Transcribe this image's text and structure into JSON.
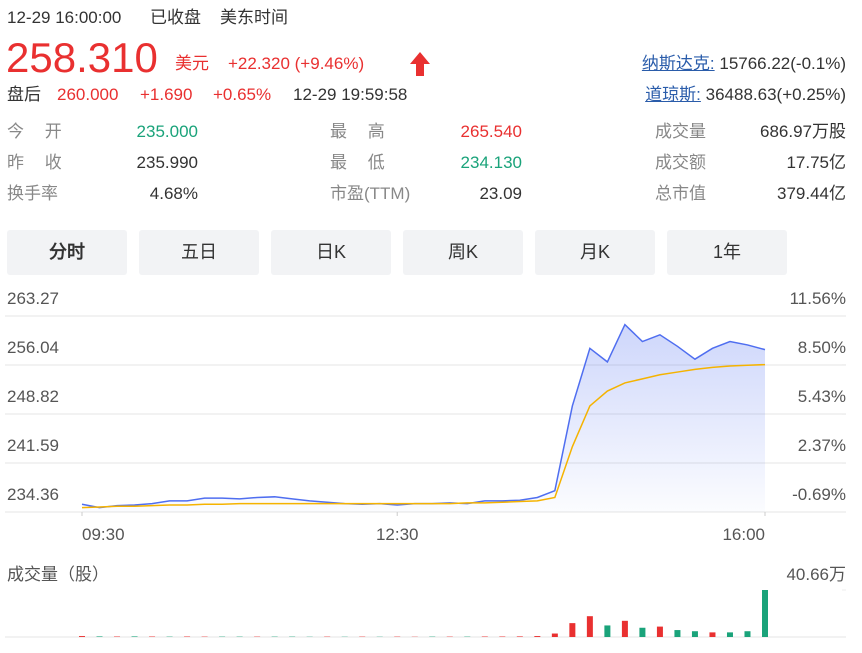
{
  "header": {
    "datetime": "12-29 16:00:00",
    "status": "已收盘",
    "timezone": "美东时间",
    "price": "258.310",
    "currency": "美元",
    "change": "+22.320 (+9.46%)",
    "after_label": "盘后",
    "after_price": "260.000",
    "after_change": "+1.690",
    "after_pct": "+0.65%",
    "after_time": "12-29 19:59:58",
    "indices": [
      {
        "label": "纳斯达克:",
        "value": "15766.22(-0.1%)"
      },
      {
        "label": "道琼斯:",
        "value": "36488.63(+0.25%)"
      }
    ]
  },
  "stats": [
    [
      {
        "label": "今 开",
        "value": "235.000",
        "color": "#1aa37a"
      },
      {
        "label": "最 高",
        "value": "265.540",
        "color": "#e93030"
      },
      {
        "label": "成交量",
        "value": "686.97万股",
        "color": "#333"
      }
    ],
    [
      {
        "label": "昨 收",
        "value": "235.990",
        "color": "#333"
      },
      {
        "label": "最 低",
        "value": "234.130",
        "color": "#1aa37a"
      },
      {
        "label": "成交额",
        "value": "17.75亿",
        "color": "#333"
      }
    ],
    [
      {
        "label": "换手率",
        "value": "4.68%",
        "color": "#333"
      },
      {
        "label": "市盈(TTM)",
        "value": "23.09",
        "color": "#333"
      },
      {
        "label": "总市值",
        "value": "379.44亿",
        "color": "#333"
      }
    ]
  ],
  "tabs": [
    "分时",
    "五日",
    "日K",
    "周K",
    "月K",
    "1年"
  ],
  "chart_data": [
    {
      "type": "line",
      "x": [
        "09:30",
        "09:40",
        "09:50",
        "10:00",
        "10:10",
        "10:20",
        "10:30",
        "10:40",
        "10:50",
        "11:00",
        "11:10",
        "11:20",
        "11:30",
        "11:40",
        "11:50",
        "12:00",
        "12:10",
        "12:20",
        "12:30",
        "12:40",
        "12:50",
        "13:00",
        "13:10",
        "13:20",
        "13:30",
        "13:40",
        "13:50",
        "14:00",
        "14:10",
        "14:20",
        "14:30",
        "14:40",
        "14:50",
        "15:00",
        "15:10",
        "15:20",
        "15:30",
        "15:40",
        "15:50",
        "16:00"
      ],
      "xticks": [
        "09:30",
        "12:30",
        "16:00"
      ],
      "series": [
        {
          "color": "#4f6ef0",
          "values": [
            235.5,
            235.0,
            235.3,
            235.4,
            235.6,
            236.0,
            236.0,
            236.4,
            236.4,
            236.3,
            236.5,
            236.6,
            236.3,
            236.0,
            235.8,
            235.6,
            235.5,
            235.6,
            235.4,
            235.6,
            235.6,
            235.7,
            235.6,
            236.0,
            236.0,
            236.1,
            236.5,
            237.5,
            250.0,
            258.5,
            256.5,
            262.0,
            259.5,
            260.5,
            258.8,
            256.9,
            258.5,
            259.5,
            259.0,
            258.31
          ]
        },
        {
          "color": "#f5b300",
          "values": [
            235.0,
            235.1,
            235.2,
            235.2,
            235.3,
            235.4,
            235.4,
            235.5,
            235.5,
            235.6,
            235.6,
            235.6,
            235.6,
            235.6,
            235.6,
            235.6,
            235.6,
            235.6,
            235.6,
            235.6,
            235.6,
            235.6,
            235.7,
            235.7,
            235.8,
            235.9,
            236.0,
            236.5,
            244.0,
            250.0,
            252.2,
            253.4,
            254.0,
            254.6,
            255.0,
            255.4,
            255.7,
            255.9,
            256.0,
            256.1
          ]
        }
      ],
      "ylim": [
        234.36,
        263.27
      ],
      "yticks": [
        234.36,
        241.59,
        248.82,
        256.04,
        263.27
      ],
      "y2lim": [
        -0.69,
        11.56
      ],
      "y2ticks": [
        {
          "value": -0.69,
          "label": "-0.69%"
        },
        {
          "value": 2.37,
          "label": "2.37%"
        },
        {
          "value": 5.43,
          "label": "5.43%"
        },
        {
          "value": 8.5,
          "label": "8.50%"
        },
        {
          "value": 11.56,
          "label": "11.56%"
        }
      ],
      "grid": true
    },
    {
      "type": "bar",
      "title": "成交量（股）",
      "values": [
        0.8,
        0.5,
        0.4,
        0.5,
        0.4,
        0.3,
        0.4,
        0.3,
        0.3,
        0.3,
        0.3,
        0.3,
        0.3,
        0.2,
        0.3,
        0.2,
        0.3,
        0.2,
        0.3,
        0.2,
        0.3,
        0.3,
        0.3,
        0.4,
        0.4,
        0.5,
        0.8,
        3.0,
        12.0,
        18.0,
        10.0,
        14.0,
        8.0,
        9.0,
        6.0,
        5.0,
        4.0,
        4.0,
        5.0,
        40.66
      ],
      "colors": [
        "#e93030",
        "#1aa37a",
        "#e93030",
        "#1aa37a",
        "#e93030",
        "#1aa37a",
        "#e93030",
        "#e93030",
        "#1aa37a",
        "#1aa37a",
        "#e93030",
        "#1aa37a",
        "#1aa37a",
        "#1aa37a",
        "#e93030",
        "#1aa37a",
        "#e93030",
        "#1aa37a",
        "#e93030",
        "#e93030",
        "#1aa37a",
        "#e93030",
        "#1aa37a",
        "#e93030",
        "#e93030",
        "#e93030",
        "#e93030",
        "#e93030",
        "#e93030",
        "#e93030",
        "#1aa37a",
        "#e93030",
        "#1aa37a",
        "#e93030",
        "#1aa37a",
        "#1aa37a",
        "#e93030",
        "#1aa37a",
        "#1aa37a",
        "#1aa37a"
      ],
      "ylim": [
        0,
        40.66
      ],
      "yticks": [
        {
          "value": 40.66,
          "label": "40.66万"
        }
      ]
    }
  ]
}
